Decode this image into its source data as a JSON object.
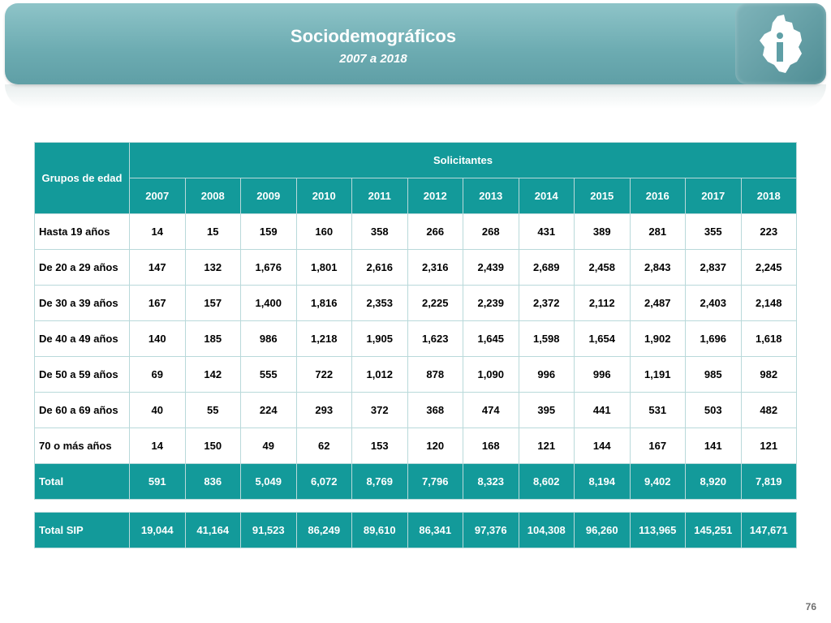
{
  "header": {
    "title": "Sociodemográficos",
    "subtitle": "2007 a 2018",
    "logo_icon": "cdmx-map-icon"
  },
  "table": {
    "group_header": "Grupos de edad",
    "span_header": "Solicitantes",
    "years": [
      "2007",
      "2008",
      "2009",
      "2010",
      "2011",
      "2012",
      "2013",
      "2014",
      "2015",
      "2016",
      "2017",
      "2018"
    ],
    "rows": [
      {
        "label": "Hasta 19 años",
        "values": [
          "14",
          "15",
          "159",
          "160",
          "358",
          "266",
          "268",
          "431",
          "389",
          "281",
          "355",
          "223"
        ]
      },
      {
        "label": "De 20 a 29 años",
        "values": [
          "147",
          "132",
          "1,676",
          "1,801",
          "2,616",
          "2,316",
          "2,439",
          "2,689",
          "2,458",
          "2,843",
          "2,837",
          "2,245"
        ]
      },
      {
        "label": "De 30 a 39 años",
        "values": [
          "167",
          "157",
          "1,400",
          "1,816",
          "2,353",
          "2,225",
          "2,239",
          "2,372",
          "2,112",
          "2,487",
          "2,403",
          "2,148"
        ]
      },
      {
        "label": "De 40 a 49 años",
        "values": [
          "140",
          "185",
          "986",
          "1,218",
          "1,905",
          "1,623",
          "1,645",
          "1,598",
          "1,654",
          "1,902",
          "1,696",
          "1,618"
        ]
      },
      {
        "label": "De 50 a 59 años",
        "values": [
          "69",
          "142",
          "555",
          "722",
          "1,012",
          "878",
          "1,090",
          "996",
          "996",
          "1,191",
          "985",
          "982"
        ]
      },
      {
        "label": "De 60 a 69 años",
        "values": [
          "40",
          "55",
          "224",
          "293",
          "372",
          "368",
          "474",
          "395",
          "441",
          "531",
          "503",
          "482"
        ]
      },
      {
        "label": "70 o más años",
        "values": [
          "14",
          "150",
          "49",
          "62",
          "153",
          "120",
          "168",
          "121",
          "144",
          "167",
          "141",
          "121"
        ]
      }
    ],
    "total": {
      "label": "Total",
      "values": [
        "591",
        "836",
        "5,049",
        "6,072",
        "8,769",
        "7,796",
        "8,323",
        "8,602",
        "8,194",
        "9,402",
        "8,920",
        "7,819"
      ]
    }
  },
  "sip": {
    "label": "Total SIP",
    "values": [
      "19,044",
      "41,164",
      "91,523",
      "86,249",
      "89,610",
      "86,341",
      "97,376",
      "104,308",
      "96,260",
      "113,965",
      "145,251",
      "147,671"
    ]
  },
  "page_number": "76",
  "colors": {
    "header_band": "#6cabb1",
    "table_teal": "#139a9a",
    "border": "#b9d9da"
  }
}
